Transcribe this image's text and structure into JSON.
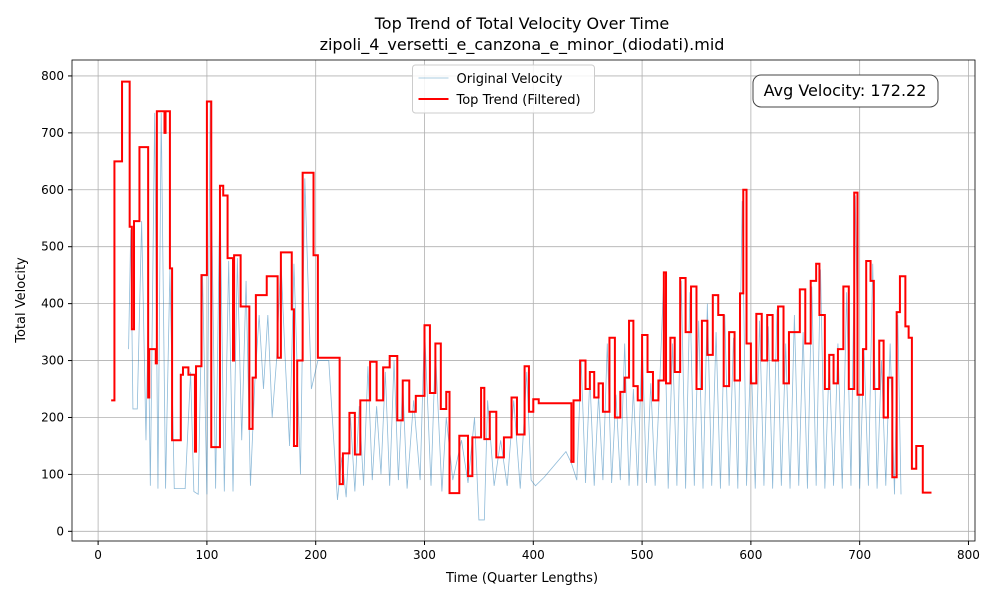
{
  "chart_data": {
    "type": "line",
    "title": "Top Trend of Total Velocity Over Time",
    "subtitle": "zipoli_4_versetti_e_canzona_e_minor_(diodati).mid",
    "x_label": "Time (Quarter Lengths)",
    "y_label": "Total Velocity",
    "annotation": "Avg Velocity: 172.22",
    "grid": true,
    "legend": "upper center",
    "xlim": [
      -24,
      806
    ],
    "ylim": [
      -17,
      828
    ],
    "xticks": [
      0,
      100,
      200,
      300,
      400,
      500,
      600,
      700,
      800
    ],
    "yticks": [
      0,
      100,
      200,
      300,
      400,
      500,
      600,
      700,
      800
    ],
    "series": [
      {
        "name": "Original Velocity",
        "color": "#1f77b4",
        "width": 0.8,
        "opacity": 0.5,
        "x": [
          28,
          30,
          32,
          36,
          40,
          44,
          46,
          48,
          52,
          55,
          58,
          62,
          66,
          70,
          80,
          85,
          88,
          92,
          96,
          100,
          103,
          108,
          112,
          116,
          120,
          124,
          128,
          132,
          136,
          140,
          144,
          148,
          152,
          156,
          160,
          164,
          168,
          172,
          176,
          180,
          186,
          190,
          196,
          202,
          212,
          220,
          224,
          228,
          232,
          236,
          240,
          244,
          248,
          252,
          256,
          260,
          264,
          268,
          272,
          276,
          280,
          284,
          290,
          296,
          300,
          306,
          310,
          316,
          320,
          326,
          334,
          340,
          346,
          350,
          355,
          358,
          364,
          370,
          376,
          382,
          388,
          394,
          398,
          402,
          410,
          430,
          435,
          440,
          444,
          448,
          452,
          456,
          460,
          464,
          468,
          472,
          476,
          480,
          484,
          488,
          492,
          496,
          500,
          504,
          508,
          512,
          516,
          520,
          524,
          528,
          532,
          536,
          540,
          544,
          548,
          552,
          556,
          560,
          564,
          568,
          572,
          576,
          580,
          584,
          588,
          592,
          596,
          600,
          604,
          608,
          612,
          616,
          620,
          624,
          628,
          632,
          636,
          640,
          644,
          648,
          652,
          656,
          660,
          664,
          668,
          672,
          676,
          680,
          684,
          688,
          692,
          696,
          700,
          704,
          708,
          712,
          716,
          720,
          724,
          728,
          732,
          735,
          738
        ],
        "values": [
          320,
          530,
          215,
          215,
          545,
          160,
          380,
          80,
          735,
          75,
          735,
          75,
          460,
          75,
          75,
          280,
          70,
          65,
          450,
          65,
          755,
          75,
          600,
          70,
          475,
          70,
          480,
          160,
          440,
          80,
          260,
          380,
          250,
          380,
          200,
          300,
          480,
          300,
          150,
          470,
          100,
          620,
          250,
          300,
          300,
          55,
          130,
          60,
          200,
          70,
          220,
          80,
          290,
          90,
          220,
          100,
          280,
          80,
          300,
          90,
          260,
          75,
          230,
          90,
          360,
          80,
          320,
          70,
          200,
          90,
          160,
          85,
          200,
          20,
          20,
          230,
          80,
          160,
          80,
          230,
          75,
          280,
          90,
          80,
          95,
          140,
          120,
          90,
          300,
          85,
          270,
          80,
          240,
          90,
          330,
          85,
          240,
          90,
          330,
          80,
          250,
          80,
          340,
          85,
          260,
          80,
          250,
          450,
          75,
          330,
          80,
          440,
          75,
          420,
          80,
          370,
          75,
          400,
          80,
          350,
          75,
          380,
          80,
          340,
          75,
          580,
          80,
          320,
          75,
          370,
          80,
          360,
          75,
          390,
          80,
          330,
          75,
          380,
          80,
          350,
          75,
          430,
          80,
          460,
          75,
          300,
          80,
          330,
          75,
          420,
          80,
          590,
          75,
          320,
          80,
          470,
          75,
          300,
          80,
          330,
          65,
          380,
          65
        ]
      },
      {
        "name": "Top Trend (Filtered)",
        "color": "#ff0000",
        "width": 2,
        "opacity": 1,
        "x": [
          12,
          15,
          15,
          22,
          22,
          29,
          29,
          31,
          31,
          33,
          33,
          38,
          38,
          46,
          46,
          47,
          47,
          53,
          53,
          54,
          54,
          61,
          61,
          62,
          62,
          66,
          66,
          68,
          68,
          76,
          76,
          78,
          78,
          83,
          83,
          89,
          89,
          90,
          90,
          95,
          95,
          100,
          100,
          104,
          104,
          112,
          112,
          115,
          115,
          119,
          119,
          124,
          124,
          125,
          125,
          131,
          131,
          139,
          139,
          142,
          142,
          145,
          145,
          155,
          155,
          165,
          165,
          168,
          168,
          178,
          178,
          180,
          180,
          183,
          183,
          188,
          188,
          198,
          198,
          202,
          202,
          222,
          222,
          225,
          225,
          231,
          231,
          236,
          236,
          241,
          241,
          250,
          250,
          256,
          256,
          262,
          262,
          268,
          268,
          275,
          275,
          280,
          280,
          286,
          286,
          292,
          292,
          300,
          300,
          305,
          305,
          310,
          310,
          315,
          315,
          320,
          320,
          323,
          323,
          332,
          332,
          340,
          340,
          344,
          344,
          352,
          352,
          355,
          355,
          360,
          360,
          366,
          366,
          373,
          373,
          380,
          380,
          385,
          385,
          392,
          392,
          396,
          396,
          400,
          400,
          405,
          405,
          435,
          435,
          437,
          437,
          443,
          443,
          448,
          448,
          452,
          452,
          456,
          456,
          460,
          460,
          464,
          464,
          470,
          470,
          475,
          475,
          480,
          480,
          484,
          484,
          488,
          488,
          492,
          492,
          496,
          496,
          500,
          500,
          505,
          505,
          510,
          510,
          515,
          515,
          520,
          520,
          522,
          522,
          526,
          526,
          530,
          530,
          535,
          535,
          540,
          540,
          545,
          545,
          550,
          550,
          555,
          555,
          560,
          560,
          565,
          565,
          570,
          570,
          575,
          575,
          580,
          580,
          585,
          585,
          590,
          590,
          593,
          593,
          596,
          596,
          600,
          600,
          605,
          605,
          610,
          610,
          615,
          615,
          620,
          620,
          625,
          625,
          630,
          630,
          635,
          635,
          645,
          645,
          650,
          650,
          655,
          655,
          660,
          660,
          663,
          663,
          668,
          668,
          672,
          672,
          676,
          676,
          680,
          680,
          685,
          685,
          690,
          690,
          695,
          695,
          698,
          698,
          703,
          703,
          706,
          706,
          710,
          710,
          713,
          713,
          718,
          718,
          722,
          722,
          726,
          726,
          730,
          730,
          734,
          734,
          737,
          737,
          742,
          742,
          745,
          745,
          748,
          748,
          752,
          752,
          758,
          758,
          766
        ],
        "values": [
          230,
          230,
          650,
          650,
          790,
          790,
          535,
          535,
          355,
          355,
          545,
          545,
          675,
          675,
          235,
          235,
          320,
          320,
          295,
          295,
          738,
          738,
          700,
          700,
          738,
          738,
          462,
          462,
          160,
          160,
          275,
          275,
          288,
          288,
          275,
          275,
          140,
          140,
          290,
          290,
          450,
          450,
          755,
          755,
          148,
          148,
          607,
          607,
          590,
          590,
          480,
          480,
          300,
          300,
          485,
          485,
          395,
          395,
          180,
          180,
          270,
          270,
          415,
          415,
          448,
          448,
          305,
          305,
          490,
          490,
          390,
          390,
          150,
          150,
          300,
          300,
          630,
          630,
          485,
          485,
          305,
          305,
          83,
          83,
          137,
          137,
          208,
          208,
          135,
          135,
          230,
          230,
          298,
          298,
          230,
          230,
          288,
          288,
          308,
          308,
          195,
          195,
          265,
          265,
          210,
          210,
          238,
          238,
          362,
          362,
          243,
          243,
          330,
          330,
          215,
          215,
          245,
          245,
          67,
          67,
          168,
          168,
          97,
          97,
          165,
          165,
          252,
          252,
          162,
          162,
          210,
          210,
          130,
          130,
          165,
          165,
          235,
          235,
          170,
          170,
          290,
          290,
          210,
          210,
          232,
          232,
          225,
          225,
          122,
          122,
          230,
          230,
          300,
          300,
          250,
          250,
          280,
          280,
          235,
          235,
          260,
          260,
          210,
          210,
          340,
          340,
          200,
          200,
          245,
          245,
          270,
          270,
          370,
          370,
          255,
          255,
          230,
          230,
          345,
          345,
          280,
          280,
          230,
          230,
          265,
          265,
          455,
          455,
          260,
          260,
          340,
          340,
          280,
          280,
          445,
          445,
          350,
          350,
          430,
          430,
          250,
          250,
          370,
          370,
          310,
          310,
          415,
          415,
          380,
          380,
          255,
          255,
          350,
          350,
          265,
          265,
          418,
          418,
          600,
          600,
          330,
          330,
          260,
          260,
          382,
          382,
          300,
          300,
          380,
          380,
          300,
          300,
          395,
          395,
          260,
          260,
          350,
          350,
          425,
          425,
          330,
          330,
          440,
          440,
          470,
          470,
          380,
          380,
          250,
          250,
          310,
          310,
          260,
          260,
          320,
          320,
          430,
          430,
          250,
          250,
          595,
          595,
          240,
          240,
          320,
          320,
          475,
          475,
          440,
          440,
          250,
          250,
          335,
          335,
          200,
          200,
          270,
          270,
          95,
          95,
          385,
          385,
          448,
          448,
          360,
          360,
          340,
          340,
          110,
          110,
          150,
          150,
          68,
          68
        ]
      }
    ]
  }
}
